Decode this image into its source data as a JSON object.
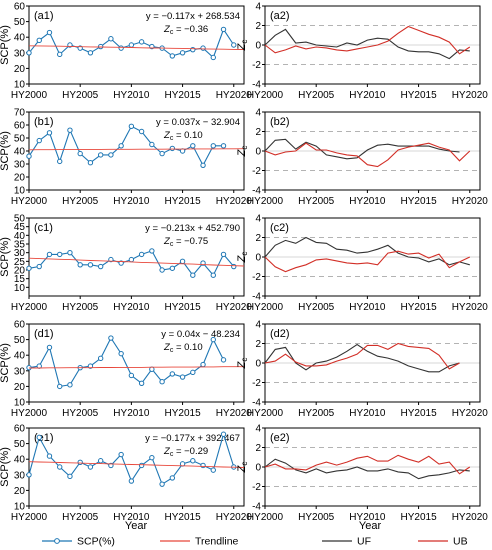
{
  "figure": {
    "legend": [
      {
        "label": "SCP(%)",
        "color": "#1f77b4",
        "kind": "line-marker"
      },
      {
        "label": "Trendline",
        "color": "#e8473b",
        "kind": "line"
      },
      {
        "label": "UF",
        "color": "#333333",
        "kind": "line"
      },
      {
        "label": "UB",
        "color": "#d22f27",
        "kind": "line"
      }
    ],
    "xlabel": "Year"
  },
  "chart_data": [
    {
      "id": "a1",
      "type": "line",
      "label": "(a1)",
      "equation": "y = −0.117x + 268.534",
      "zc": "= −0.36",
      "ylabel": "SCP(%)",
      "ylim": [
        10,
        60
      ],
      "yticks": [
        10,
        20,
        30,
        40,
        50,
        60
      ],
      "x": [
        2000,
        2001,
        2002,
        2003,
        2004,
        2005,
        2006,
        2007,
        2008,
        2009,
        2010,
        2011,
        2012,
        2013,
        2014,
        2015,
        2016,
        2017,
        2018,
        2019,
        2020,
        2021
      ],
      "xticks": [
        2000,
        2005,
        2010,
        2015,
        2020
      ],
      "xtick_labels": [
        "HY2000",
        "HY2005",
        "HY2010",
        "HY2015",
        "HY2020"
      ],
      "series": [
        {
          "name": "SCP(%)",
          "values": [
            30,
            38,
            43,
            29,
            35,
            33,
            30,
            34,
            39,
            33,
            35,
            37,
            34,
            33,
            28,
            30,
            32,
            33,
            27,
            45,
            35,
            null
          ]
        },
        {
          "name": "Trendline",
          "values": [
            34.5,
            34.4,
            34.3,
            34.2,
            34.1,
            33.9,
            33.8,
            33.7,
            33.6,
            33.5,
            33.4,
            33.2,
            33.1,
            33.0,
            32.9,
            32.8,
            32.6,
            32.5,
            32.4,
            32.3,
            32.2,
            32.1
          ]
        }
      ]
    },
    {
      "id": "a2",
      "type": "line",
      "label": "(a2)",
      "ylabel": "Z",
      "ylim": [
        -4,
        4
      ],
      "yticks": [
        -4,
        -2,
        0,
        2,
        4
      ],
      "x": [
        2000,
        2001,
        2002,
        2003,
        2004,
        2005,
        2006,
        2007,
        2008,
        2009,
        2010,
        2011,
        2012,
        2013,
        2014,
        2015,
        2016,
        2017,
        2018,
        2019,
        2020,
        2021
      ],
      "xticks": [
        2000,
        2005,
        2010,
        2015,
        2020
      ],
      "xtick_labels": [
        "HY2000",
        "HY2005",
        "HY2010",
        "HY2015",
        "HY2020"
      ],
      "series": [
        {
          "name": "UF",
          "values": [
            0,
            1.0,
            1.6,
            0.2,
            0.3,
            0,
            -0.1,
            -0.2,
            0.2,
            0,
            0.5,
            0.7,
            0.6,
            -0.2,
            -0.6,
            -0.7,
            -0.7,
            -0.9,
            -1.4,
            -0.5,
            -0.6,
            null
          ]
        },
        {
          "name": "UB",
          "values": [
            0,
            -0.8,
            -0.5,
            -0.1,
            -0.4,
            -0.2,
            -0.3,
            -0.5,
            -0.6,
            -0.4,
            -0.2,
            0,
            0.4,
            1.2,
            1.9,
            1.5,
            1.1,
            0.8,
            0.3,
            -0.9,
            -0.2,
            null
          ]
        }
      ]
    },
    {
      "id": "b1",
      "type": "line",
      "label": "(b1)",
      "equation": "y = 0.037x − 32.904",
      "zc": "= 0.10",
      "ylabel": "SCP(%)",
      "ylim": [
        10,
        70
      ],
      "yticks": [
        10,
        20,
        30,
        40,
        50,
        60,
        70
      ],
      "x": [
        2000,
        2001,
        2002,
        2003,
        2004,
        2005,
        2006,
        2007,
        2008,
        2009,
        2010,
        2011,
        2012,
        2013,
        2014,
        2015,
        2016,
        2017,
        2018,
        2019,
        2020,
        2021
      ],
      "xticks": [
        2000,
        2005,
        2010,
        2015,
        2020
      ],
      "xtick_labels": [
        "HY2000",
        "HY2005",
        "HY2010",
        "HY2015",
        "HY2020"
      ],
      "series": [
        {
          "name": "SCP(%)",
          "values": [
            36,
            48,
            54,
            32,
            56,
            38,
            31,
            37,
            37,
            44,
            59,
            55,
            45,
            38,
            42,
            40,
            44,
            29,
            44,
            44,
            null,
            null
          ]
        },
        {
          "name": "Trendline",
          "values": [
            40.9,
            41.0,
            41.0,
            41.1,
            41.1,
            41.1,
            41.2,
            41.2,
            41.3,
            41.3,
            41.3,
            41.4,
            41.4,
            41.4,
            41.5,
            41.5,
            41.6,
            41.6,
            41.6,
            41.7,
            41.7,
            41.8
          ]
        }
      ]
    },
    {
      "id": "b2",
      "type": "line",
      "label": "(b2)",
      "ylabel": "Z",
      "ylim": [
        -4,
        4
      ],
      "yticks": [
        -4,
        -2,
        0,
        2,
        4
      ],
      "x": [
        2000,
        2001,
        2002,
        2003,
        2004,
        2005,
        2006,
        2007,
        2008,
        2009,
        2010,
        2011,
        2012,
        2013,
        2014,
        2015,
        2016,
        2017,
        2018,
        2019,
        2020,
        2021
      ],
      "xticks": [
        2000,
        2005,
        2010,
        2015,
        2020
      ],
      "xtick_labels": [
        "HY2000",
        "HY2005",
        "HY2010",
        "HY2015",
        "HY2020"
      ],
      "series": [
        {
          "name": "UF",
          "values": [
            0,
            1.1,
            1.2,
            0.2,
            0.9,
            0.5,
            -0.4,
            -0.6,
            -0.8,
            -0.7,
            0.1,
            0.6,
            0.7,
            0.5,
            0.5,
            0.5,
            0.5,
            0.2,
            0,
            -0.1,
            null,
            null
          ]
        },
        {
          "name": "UB",
          "values": [
            0,
            -0.4,
            -0.1,
            0,
            0.8,
            0.1,
            0.1,
            -0.2,
            -0.4,
            -0.5,
            -1.4,
            -1.6,
            -0.9,
            0.1,
            0.4,
            0.6,
            0.8,
            0.4,
            0.1,
            -1.0,
            0,
            null
          ]
        }
      ]
    },
    {
      "id": "c1",
      "type": "line",
      "label": "(c1)",
      "equation": "y = −0.213x + 452.790",
      "zc": "= −0.75",
      "ylabel": "SCP(%)",
      "ylim": [
        5,
        50
      ],
      "yticks": [
        10,
        15,
        20,
        25,
        30,
        35,
        40,
        45,
        50
      ],
      "x": [
        2000,
        2001,
        2002,
        2003,
        2004,
        2005,
        2006,
        2007,
        2008,
        2009,
        2010,
        2011,
        2012,
        2013,
        2014,
        2015,
        2016,
        2017,
        2018,
        2019,
        2020,
        2021
      ],
      "xticks": [
        2000,
        2005,
        2010,
        2015,
        2020
      ],
      "xtick_labels": [
        "HY2000",
        "HY2005",
        "HY2010",
        "HY2015",
        "HY2020"
      ],
      "series": [
        {
          "name": "SCP(%)",
          "values": [
            21,
            22,
            29,
            29,
            30,
            23,
            23,
            22,
            26,
            24,
            26,
            29,
            31,
            20,
            21,
            25,
            17,
            24,
            17,
            29,
            22,
            null
          ]
        },
        {
          "name": "Trendline",
          "values": [
            26.8,
            26.6,
            26.4,
            26.2,
            26.0,
            25.7,
            25.5,
            25.3,
            25.1,
            24.9,
            24.7,
            24.4,
            24.2,
            24.0,
            23.8,
            23.6,
            23.4,
            23.1,
            22.9,
            22.7,
            22.5,
            22.3
          ]
        }
      ]
    },
    {
      "id": "c2",
      "type": "line",
      "label": "(c2)",
      "ylabel": "Z",
      "ylim": [
        -4,
        4
      ],
      "yticks": [
        -4,
        -2,
        0,
        2,
        4
      ],
      "x": [
        2000,
        2001,
        2002,
        2003,
        2004,
        2005,
        2006,
        2007,
        2008,
        2009,
        2010,
        2011,
        2012,
        2013,
        2014,
        2015,
        2016,
        2017,
        2018,
        2019,
        2020,
        2021
      ],
      "xticks": [
        2000,
        2005,
        2010,
        2015,
        2020
      ],
      "xtick_labels": [
        "HY2000",
        "HY2005",
        "HY2010",
        "HY2015",
        "HY2020"
      ],
      "series": [
        {
          "name": "UF",
          "values": [
            0,
            1.2,
            1.7,
            1.4,
            2.0,
            1.5,
            1.4,
            0.8,
            0.7,
            0.4,
            0.5,
            0.8,
            1.2,
            0.4,
            0,
            -0.1,
            -0.5,
            -0.2,
            -0.8,
            -0.5,
            -0.8,
            null
          ]
        },
        {
          "name": "UB",
          "values": [
            0,
            -1.0,
            -1.5,
            -1.1,
            -0.8,
            -0.3,
            -0.2,
            -0.4,
            -0.6,
            -0.7,
            -0.6,
            -0.8,
            0.4,
            0.6,
            0.3,
            0.4,
            -0.1,
            0.3,
            -1.1,
            -0.5,
            0,
            null
          ]
        }
      ]
    },
    {
      "id": "d1",
      "type": "line",
      "label": "(d1)",
      "equation": "y = 0.04x − 48.234",
      "zc": "= 0.10",
      "ylabel": "SCP(%)",
      "ylim": [
        10,
        60
      ],
      "yticks": [
        10,
        20,
        30,
        40,
        50,
        60
      ],
      "x": [
        2000,
        2001,
        2002,
        2003,
        2004,
        2005,
        2006,
        2007,
        2008,
        2009,
        2010,
        2011,
        2012,
        2013,
        2014,
        2015,
        2016,
        2017,
        2018,
        2019,
        2020,
        2021
      ],
      "xticks": [
        2000,
        2005,
        2010,
        2015,
        2020
      ],
      "xtick_labels": [
        "HY2000",
        "HY2005",
        "HY2010",
        "HY2015",
        "HY2020"
      ],
      "series": [
        {
          "name": "SCP(%)",
          "values": [
            32,
            33,
            45,
            20,
            21,
            32,
            33,
            38,
            51,
            41,
            27,
            22,
            31,
            23,
            28,
            26,
            29,
            34,
            50,
            37,
            null,
            null
          ]
        },
        {
          "name": "Trendline",
          "values": [
            31.8,
            31.8,
            31.9,
            31.9,
            32.0,
            32.0,
            32.0,
            32.1,
            32.1,
            32.2,
            32.2,
            32.2,
            32.3,
            32.3,
            32.4,
            32.4,
            32.4,
            32.5,
            32.5,
            32.6,
            32.6,
            32.6
          ]
        }
      ]
    },
    {
      "id": "d2",
      "type": "line",
      "label": "(d2)",
      "ylabel": "Z",
      "ylim": [
        -4,
        4
      ],
      "yticks": [
        -4,
        -2,
        0,
        2,
        4
      ],
      "x": [
        2000,
        2001,
        2002,
        2003,
        2004,
        2005,
        2006,
        2007,
        2008,
        2009,
        2010,
        2011,
        2012,
        2013,
        2014,
        2015,
        2016,
        2017,
        2018,
        2019,
        2020,
        2021
      ],
      "xticks": [
        2000,
        2005,
        2010,
        2015,
        2020
      ],
      "xtick_labels": [
        "HY2000",
        "HY2005",
        "HY2010",
        "HY2015",
        "HY2020"
      ],
      "series": [
        {
          "name": "UF",
          "values": [
            0,
            1.4,
            1.6,
            0,
            -0.7,
            0,
            0.2,
            0.6,
            1.2,
            1.9,
            1.2,
            0.7,
            0.5,
            0.2,
            -0.3,
            -0.6,
            -0.9,
            -0.9,
            -0.3,
            0,
            null,
            null
          ]
        },
        {
          "name": "UB",
          "values": [
            0,
            0.2,
            0.9,
            0.1,
            -0.3,
            -0.3,
            -0.2,
            0.2,
            0.5,
            0.9,
            1.8,
            1.8,
            1.4,
            2.0,
            1.7,
            1.6,
            1.5,
            0.8,
            -0.6,
            0,
            null,
            null
          ]
        }
      ]
    },
    {
      "id": "e1",
      "type": "line",
      "label": "(e1)",
      "equation": "y = −0.177x + 392.467",
      "zc": "= −0.29",
      "ylabel": "SCP(%)",
      "ylim": [
        10,
        60
      ],
      "yticks": [
        10,
        20,
        30,
        40,
        50,
        60
      ],
      "x": [
        2000,
        2001,
        2002,
        2003,
        2004,
        2005,
        2006,
        2007,
        2008,
        2009,
        2010,
        2011,
        2012,
        2013,
        2014,
        2015,
        2016,
        2017,
        2018,
        2019,
        2020,
        2021
      ],
      "xticks": [
        2000,
        2005,
        2010,
        2015,
        2020
      ],
      "xtick_labels": [
        "HY2000",
        "HY2005",
        "HY2010",
        "HY2015",
        "HY2020"
      ],
      "series": [
        {
          "name": "SCP(%)",
          "values": [
            30,
            54,
            42,
            35,
            29,
            38,
            35,
            39,
            36,
            43,
            26,
            36,
            41,
            24,
            28,
            37,
            39,
            36,
            33,
            56,
            35,
            null
          ]
        },
        {
          "name": "Trendline",
          "values": [
            38.4,
            38.2,
            38.1,
            37.9,
            37.7,
            37.5,
            37.3,
            37.2,
            37.0,
            36.8,
            36.6,
            36.5,
            36.3,
            36.1,
            35.9,
            35.8,
            35.6,
            35.4,
            35.2,
            35.0,
            34.9,
            34.7
          ]
        }
      ]
    },
    {
      "id": "e2",
      "type": "line",
      "label": "(e2)",
      "ylabel": "Z",
      "ylim": [
        -4,
        4
      ],
      "yticks": [
        -4,
        -2,
        0,
        2,
        4
      ],
      "x": [
        2000,
        2001,
        2002,
        2003,
        2004,
        2005,
        2006,
        2007,
        2008,
        2009,
        2010,
        2011,
        2012,
        2013,
        2014,
        2015,
        2016,
        2017,
        2018,
        2019,
        2020,
        2021
      ],
      "xticks": [
        2000,
        2005,
        2010,
        2015,
        2020
      ],
      "xtick_labels": [
        "HY2000",
        "HY2005",
        "HY2010",
        "HY2015",
        "HY2020"
      ],
      "series": [
        {
          "name": "UF",
          "values": [
            0,
            0.8,
            0.4,
            -0.3,
            -0.6,
            -0.2,
            -0.6,
            -0.4,
            -0.3,
            0,
            -0.4,
            -0.4,
            -0.2,
            -0.5,
            -0.6,
            -1.2,
            -0.9,
            -0.8,
            -0.6,
            -0.3,
            -0.4,
            null
          ]
        },
        {
          "name": "UB",
          "values": [
            0,
            0.3,
            -0.2,
            -0.2,
            -0.3,
            0.2,
            0.5,
            0.2,
            0.5,
            0.9,
            1.1,
            0.6,
            0.6,
            1.2,
            0.8,
            0.5,
            1.1,
            0.3,
            0.5,
            -0.7,
            0,
            null
          ]
        }
      ]
    }
  ]
}
